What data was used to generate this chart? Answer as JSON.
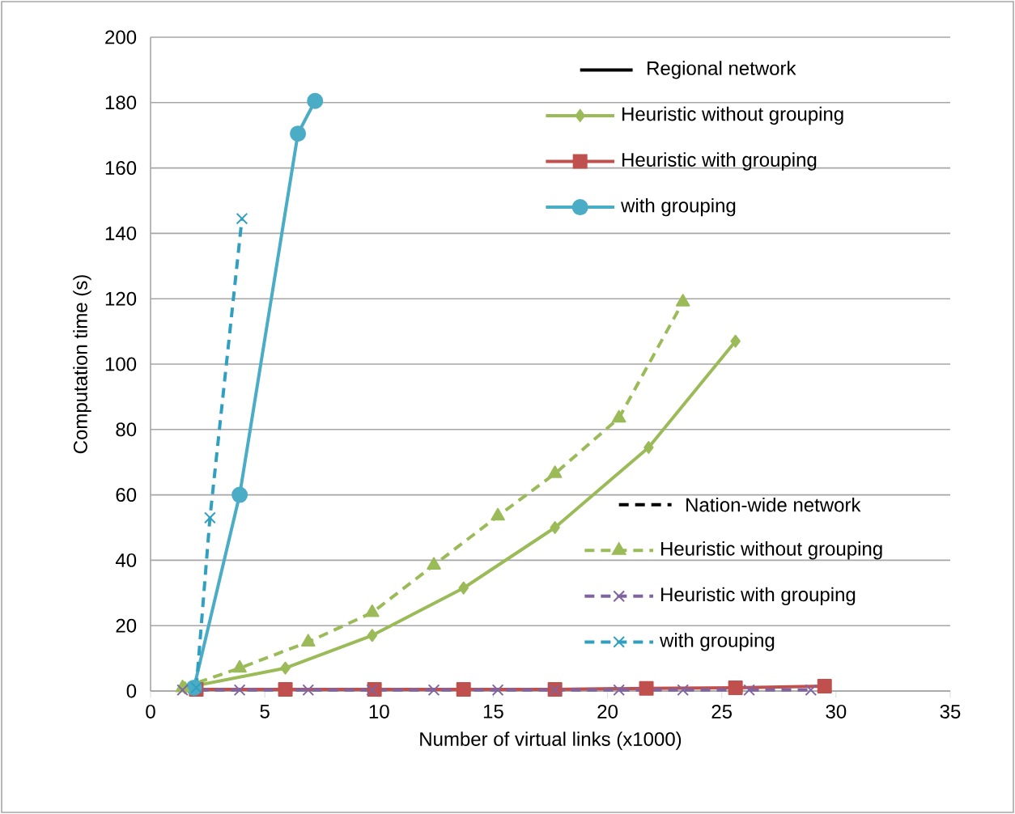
{
  "chart_data": {
    "type": "line",
    "xlabel": "Number of virtual links (x1000)",
    "ylabel": "Computation time (s)",
    "xlim": [
      0,
      35
    ],
    "xticks": [
      0,
      5,
      10,
      15,
      20,
      25,
      30,
      35
    ],
    "ylim": [
      0,
      200
    ],
    "yticks": [
      0,
      20,
      40,
      60,
      80,
      100,
      120,
      140,
      160,
      180,
      200
    ],
    "grid": "y",
    "legend": "right",
    "annotations": [
      "Regional network",
      "Nation-wide network"
    ],
    "series": [
      {
        "name": "Heuristic without grouping",
        "color": "#9bbb59",
        "marker": "diamond",
        "line_style": "solid",
        "x": [
          1.5,
          5.9,
          9.7,
          13.7,
          17.7,
          21.8,
          25.6
        ],
        "values": [
          1,
          7,
          17,
          31.5,
          50,
          74.5,
          107
        ]
      },
      {
        "name": "Heuristic with grouping",
        "color": "#c0504d",
        "marker": "square",
        "line_style": "solid",
        "x": [
          2,
          5.9,
          9.8,
          13.7,
          17.7,
          21.7,
          25.6,
          29.5
        ],
        "values": [
          0.5,
          0.5,
          0.5,
          0.5,
          0.5,
          0.8,
          1,
          1.5
        ]
      },
      {
        "name": "with grouping",
        "color": "#4bacc6",
        "marker": "circle",
        "line_style": "solid",
        "x": [
          1.9,
          3.9,
          6.45,
          7.2
        ],
        "values": [
          1,
          60,
          170.5,
          180.5
        ]
      },
      {
        "name": "Heuristic without grouping",
        "color": "#9bbb59",
        "marker": "triangle",
        "line_style": "dashed",
        "x": [
          1.4,
          3.9,
          6.9,
          9.7,
          12.4,
          15.2,
          17.7,
          20.5,
          23.3
        ],
        "values": [
          1,
          7,
          15,
          24,
          38.5,
          53.5,
          66.5,
          83.5,
          119
        ]
      },
      {
        "name": "Heuristic with grouping",
        "color": "#8064a2",
        "marker": "cross",
        "line_style": "dashed",
        "x": [
          1.4,
          3.9,
          6.9,
          9.7,
          12.4,
          15.2,
          17.7,
          20.5,
          23.3,
          26.2,
          28.9
        ],
        "values": [
          0.3,
          0.3,
          0.3,
          0.3,
          0.3,
          0.3,
          0.3,
          0.3,
          0.3,
          0.3,
          0.3
        ]
      },
      {
        "name": "with grouping",
        "color": "#31a0c0",
        "marker": "cross",
        "line_style": "dashed",
        "x": [
          2,
          2.6,
          4.0
        ],
        "values": [
          1,
          53,
          144.5
        ]
      }
    ]
  }
}
